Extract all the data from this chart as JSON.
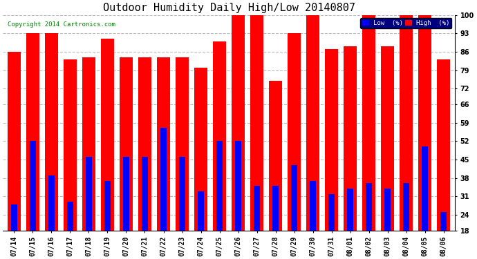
{
  "title": "Outdoor Humidity Daily High/Low 20140807",
  "copyright": "Copyright 2014 Cartronics.com",
  "categories": [
    "07/14",
    "07/15",
    "07/16",
    "07/17",
    "07/18",
    "07/19",
    "07/20",
    "07/21",
    "07/22",
    "07/23",
    "07/24",
    "07/25",
    "07/26",
    "07/27",
    "07/28",
    "07/29",
    "07/30",
    "07/31",
    "08/01",
    "08/02",
    "08/03",
    "08/04",
    "08/05",
    "08/06"
  ],
  "high_values": [
    86,
    93,
    93,
    83,
    84,
    91,
    84,
    84,
    84,
    84,
    80,
    90,
    100,
    100,
    75,
    93,
    100,
    87,
    88,
    100,
    88,
    100,
    100,
    83
  ],
  "low_values": [
    28,
    52,
    39,
    29,
    46,
    37,
    46,
    46,
    57,
    46,
    33,
    52,
    52,
    35,
    35,
    43,
    37,
    32,
    34,
    36,
    34,
    36,
    50,
    25
  ],
  "high_color": "#ff0000",
  "low_color": "#0000ff",
  "bg_color": "#ffffff",
  "grid_color": "#bbbbbb",
  "yticks": [
    18,
    24,
    31,
    38,
    45,
    52,
    59,
    66,
    72,
    79,
    86,
    93,
    100
  ],
  "ymin": 18,
  "ymax": 100,
  "title_fontsize": 11,
  "tick_fontsize": 7,
  "legend_low_label": "Low  (%)",
  "legend_high_label": "High  (%)"
}
